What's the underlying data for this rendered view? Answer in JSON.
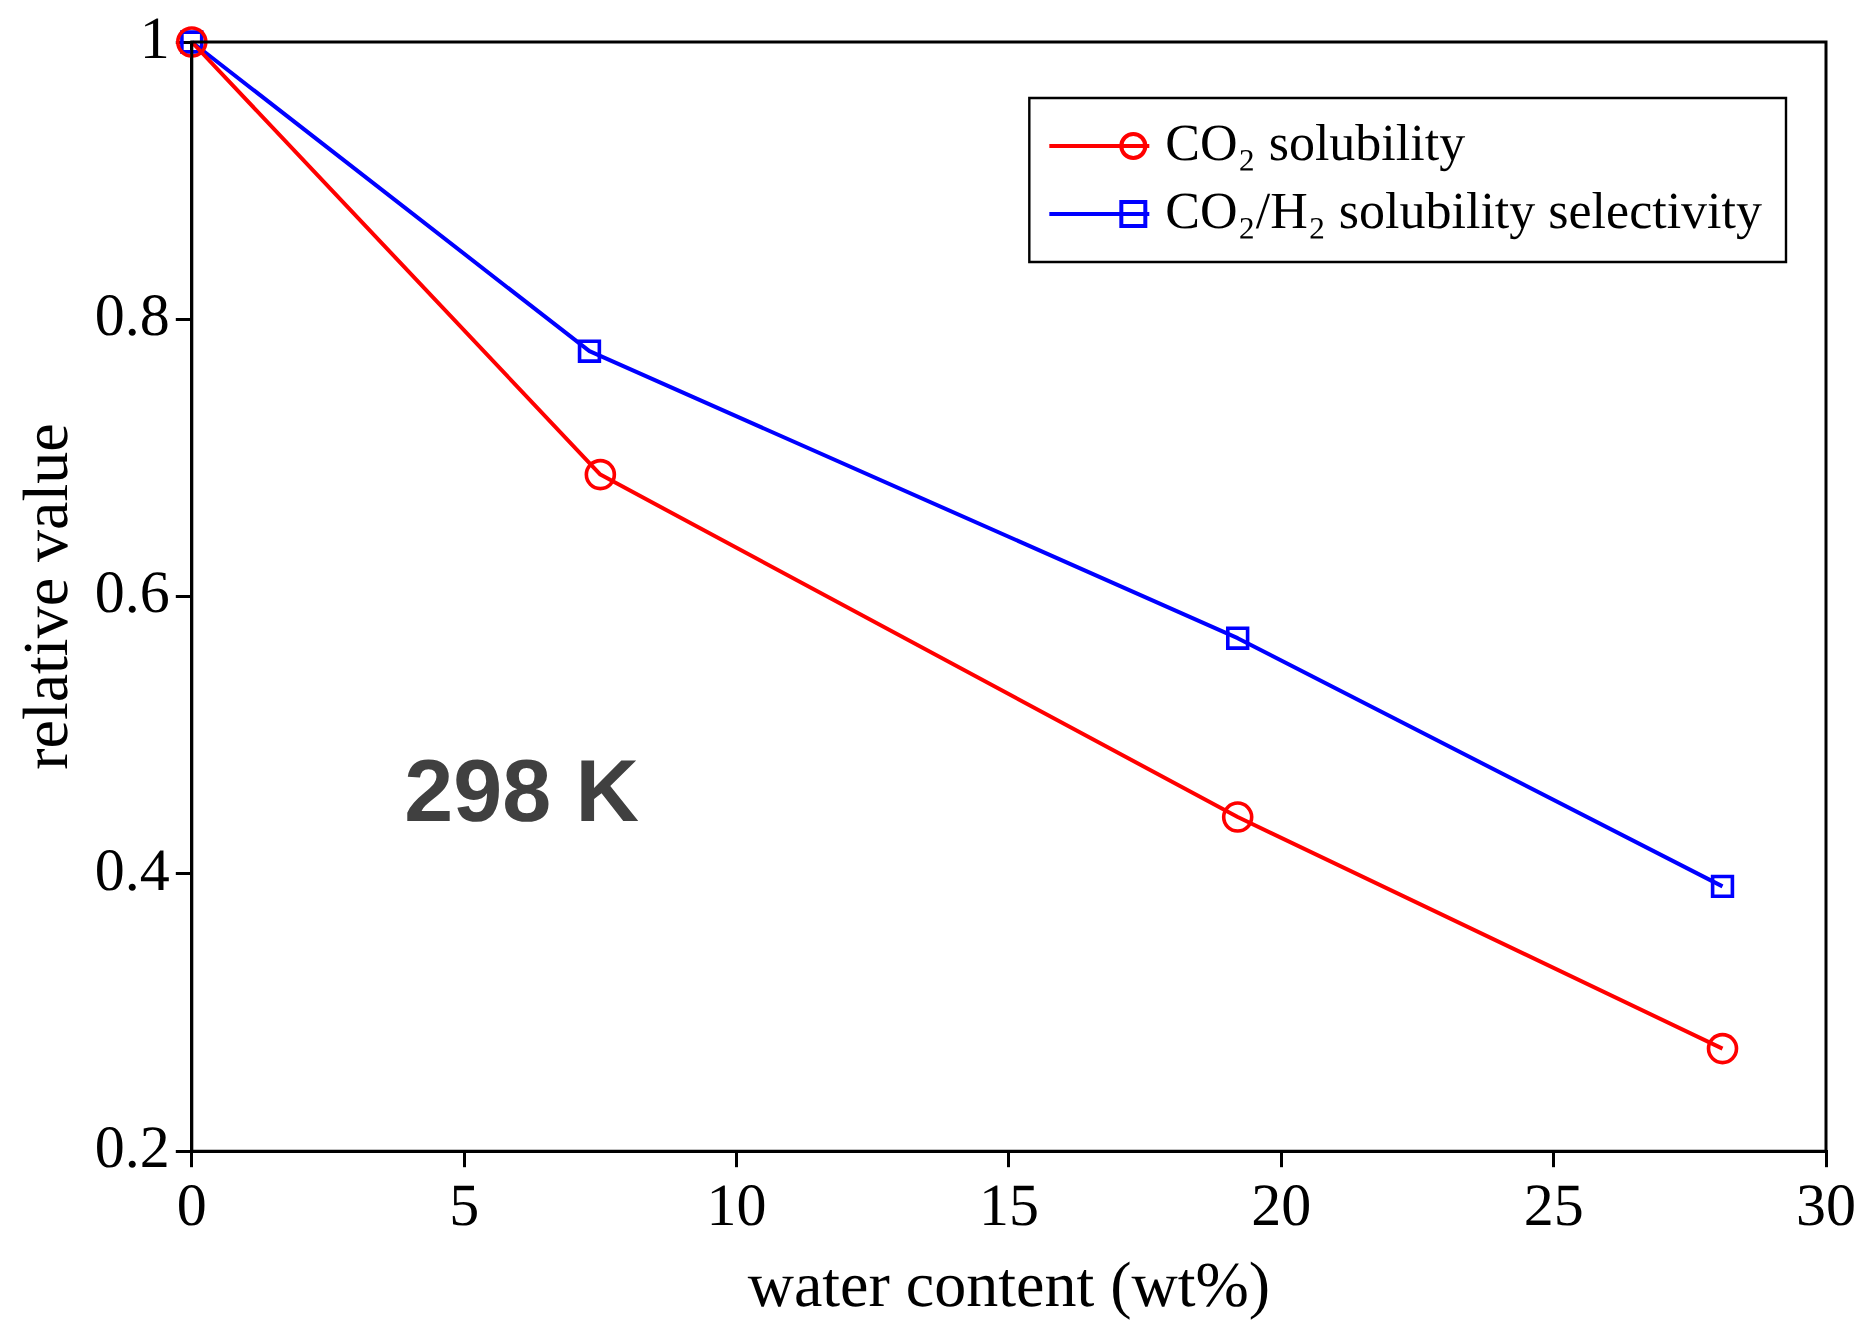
{
  "chart_data": {
    "type": "line",
    "xlabel": "water content (wt%)",
    "ylabel": "relative value",
    "series": [
      {
        "name": "CO₂ solubility",
        "color": "#ff0000",
        "values": [
          1,
          0.688,
          0.441,
          0.274
        ],
        "marker": "circle",
        "x": [
          0,
          7.5,
          19.2,
          28.1
        ]
      },
      {
        "name": "CO₂/H₂ solubility selectivity",
        "color": "#0000ff",
        "values": [
          1,
          0.777,
          0.57,
          0.391
        ],
        "marker": "square",
        "x": [
          0,
          7.3,
          19.2,
          28.1
        ]
      }
    ],
    "xlim": [
      0,
      30
    ],
    "xticks": [
      0,
      5,
      10,
      15,
      20,
      25,
      30
    ],
    "ylim": [
      0.2,
      1
    ],
    "yticks": [
      0.2,
      0.4,
      0.6,
      0.8,
      1
    ],
    "grid": false,
    "legend": "top right",
    "line_style": "solid",
    "annotations": [
      "298 K"
    ]
  }
}
